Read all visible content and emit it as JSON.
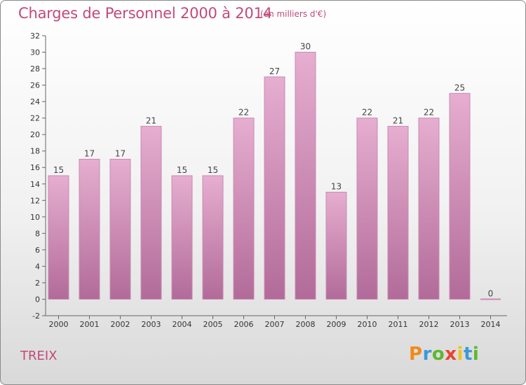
{
  "header": {
    "title": "Charges de Personnel 2000 à 2014",
    "subtitle": "(en milliers d'€)"
  },
  "footer": {
    "commune": "TREIX",
    "logo": "Proxiti",
    "logo_letters": [
      {
        "ch": "P",
        "color": "#f08a1c"
      },
      {
        "ch": "r",
        "color": "#3a9ad9"
      },
      {
        "ch": "o",
        "color": "#5cb82e"
      },
      {
        "ch": "x",
        "color": "#e8432f"
      },
      {
        "ch": "i",
        "color": "#f0c419"
      },
      {
        "ch": "t",
        "color": "#3a9ad9"
      },
      {
        "ch": "i",
        "color": "#5cb82e"
      }
    ]
  },
  "colors": {
    "bar_top": "#e6aed0",
    "bar_bottom": "#b26b99",
    "bar_edge": "#c98ab4",
    "title": "#c24a7a"
  },
  "chart_data": {
    "type": "bar",
    "title": "Charges de Personnel 2000 à 2014",
    "subtitle": "(en milliers d'€)",
    "categories": [
      "2000",
      "2001",
      "2002",
      "2003",
      "2004",
      "2005",
      "2006",
      "2007",
      "2008",
      "2009",
      "2010",
      "2011",
      "2012",
      "2013",
      "2014"
    ],
    "values": [
      15,
      17,
      17,
      21,
      15,
      15,
      22,
      27,
      30,
      13,
      22,
      21,
      22,
      25,
      0
    ],
    "ylim": [
      -2,
      32
    ],
    "yticks": [
      -2,
      0,
      2,
      4,
      6,
      8,
      10,
      12,
      14,
      16,
      18,
      20,
      22,
      24,
      26,
      28,
      30,
      32
    ],
    "grid": false,
    "data_labels": true
  }
}
